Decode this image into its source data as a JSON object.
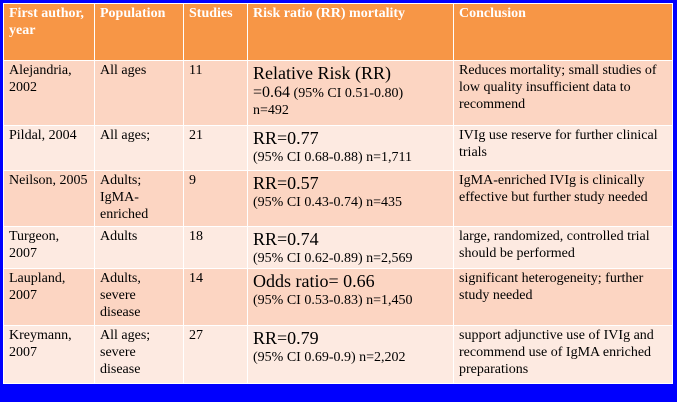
{
  "headers": {
    "author": "First author, year",
    "population": "Population",
    "studies": "Studies",
    "rr": "Risk ratio (RR)  mortality",
    "conclusion": "Conclusion"
  },
  "rows": [
    {
      "author": "Alejandria, 2002",
      "population": "All ages",
      "studies": "11",
      "rr_main": "Relative Risk (RR)",
      "rr_value": "=0.64",
      "rr_ci": "(95% CI 0.51-0.80)",
      "rr_n": "n=492",
      "conclusion": "Reduces mortality; small studies of low quality insufficient data to recommend"
    },
    {
      "author": "Pildal, 2004",
      "population": "All ages;",
      "studies": "21",
      "rr_main": "RR=0.77",
      "rr_ci": "(95% CI 0.68-0.88)",
      "rr_n": "n=1,711",
      "conclusion": "IVIg use reserve for further clinical trials"
    },
    {
      "author": "Neilson, 2005",
      "population": "Adults; IgMA-enriched",
      "studies": "9",
      "rr_main": "RR=0.57",
      "rr_ci": "(95% CI 0.43-0.74)",
      "rr_n": "n=435",
      "conclusion": "IgMA-enriched IVIg is clinically effective but further study needed"
    },
    {
      "author": "Turgeon, 2007",
      "population": "Adults",
      "studies": "18",
      "rr_main": "RR=0.74",
      "rr_ci": "(95% CI 0.62-0.89)",
      "rr_n": "n=2,569",
      "conclusion": "large, randomized, controlled trial should be performed"
    },
    {
      "author": "Laupland, 2007",
      "population": "Adults, severe disease",
      "studies": "14",
      "rr_main": "Odds ratio= 0.66",
      "rr_ci": "(95% CI 0.53-0.83)",
      "rr_n": "n=1,450",
      "conclusion": "significant heterogeneity; further study needed"
    },
    {
      "author": "Kreymann, 2007",
      "population": "All ages; severe disease",
      "studies": "27",
      "rr_main": "RR=0.79",
      "rr_ci": "(95% CI 0.69-0.9)",
      "rr_n": "n=2,202",
      "conclusion": "support adjunctive use of IVIg and  recommend use of IgMA enriched preparations"
    }
  ]
}
